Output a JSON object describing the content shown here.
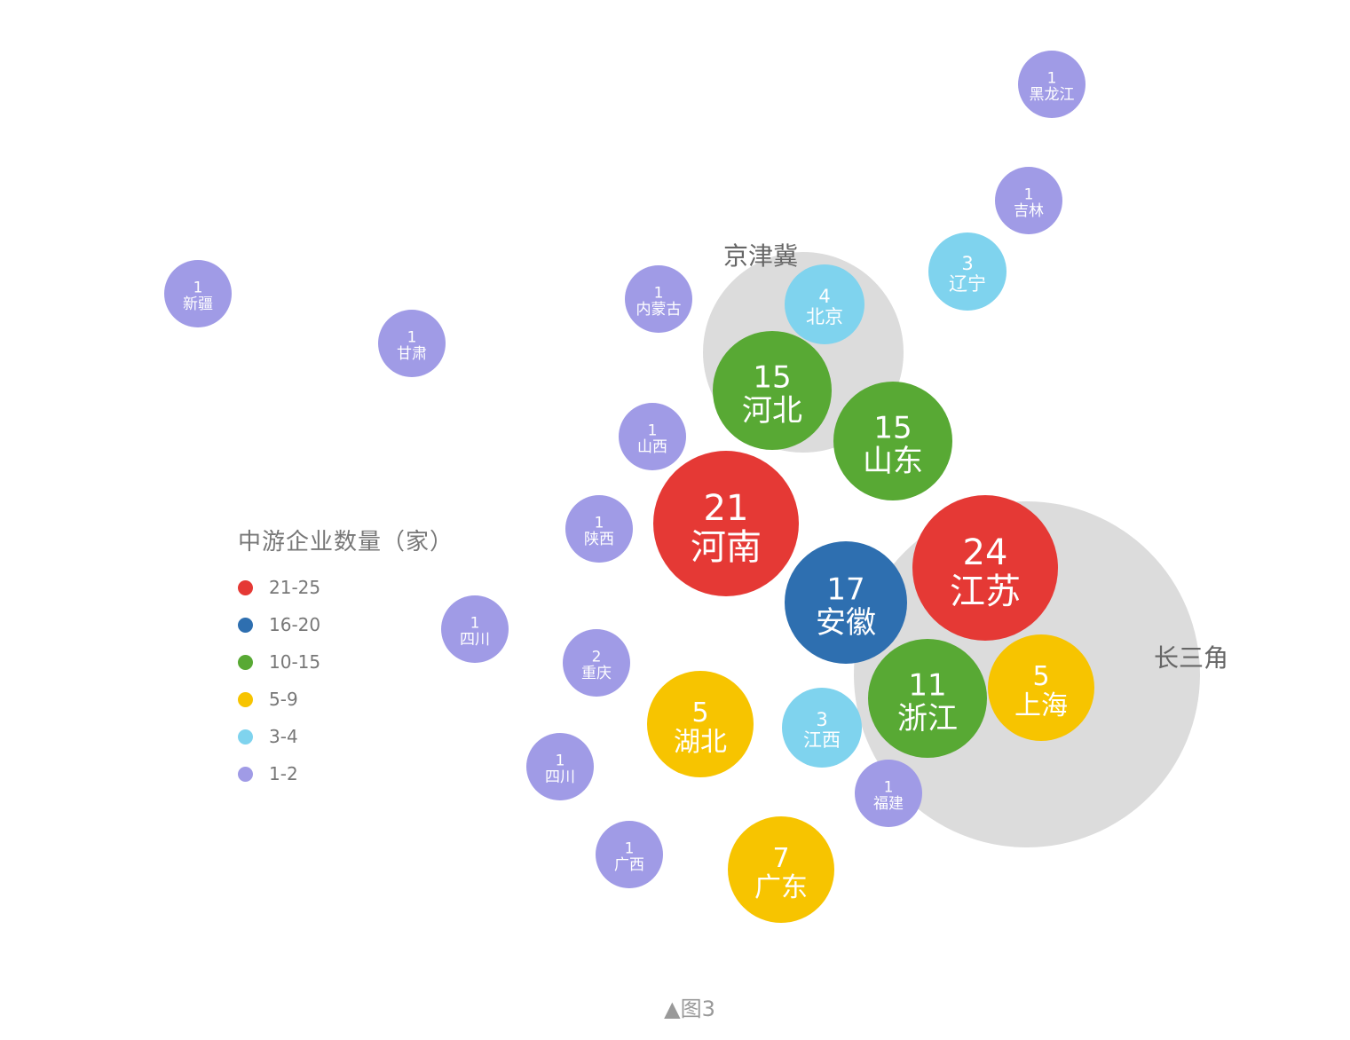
{
  "legend": {
    "title": "中游企业数量（家）",
    "items": [
      {
        "label": "21-25",
        "color": "#e53935"
      },
      {
        "label": "16-20",
        "color": "#2e6fb0"
      },
      {
        "label": "10-15",
        "color": "#58a934"
      },
      {
        "label": "5-9",
        "color": "#f7c400"
      },
      {
        "label": "3-4",
        "color": "#7fd3ee"
      },
      {
        "label": "1-2",
        "color": "#a09be6"
      }
    ]
  },
  "regions": [
    {
      "label": "京津冀",
      "color": "#dcdcdc"
    },
    {
      "label": "长三角",
      "color": "#dcdcdc"
    }
  ],
  "bubbles": [
    {
      "name": "黑龙江",
      "value": 1
    },
    {
      "name": "吉林",
      "value": 1
    },
    {
      "name": "辽宁",
      "value": 3
    },
    {
      "name": "新疆",
      "value": 1
    },
    {
      "name": "甘肃",
      "value": 1
    },
    {
      "name": "内蒙古",
      "value": 1
    },
    {
      "name": "北京",
      "value": 4
    },
    {
      "name": "河北",
      "value": 15
    },
    {
      "name": "山东",
      "value": 15
    },
    {
      "name": "山西",
      "value": 1
    },
    {
      "name": "河南",
      "value": 21
    },
    {
      "name": "陕西",
      "value": 1
    },
    {
      "name": "安徽",
      "value": 17
    },
    {
      "name": "江苏",
      "value": 24
    },
    {
      "name": "浙江",
      "value": 11
    },
    {
      "name": "上海",
      "value": 5
    },
    {
      "name": "四川",
      "value": 1
    },
    {
      "name": "重庆",
      "value": 2
    },
    {
      "name": "湖北",
      "value": 5
    },
    {
      "name": "江西",
      "value": 3
    },
    {
      "name": "四川",
      "value": 1
    },
    {
      "name": "福建",
      "value": 1
    },
    {
      "name": "广西",
      "value": 1
    },
    {
      "name": "广东",
      "value": 7
    }
  ],
  "caption": "▲图3"
}
